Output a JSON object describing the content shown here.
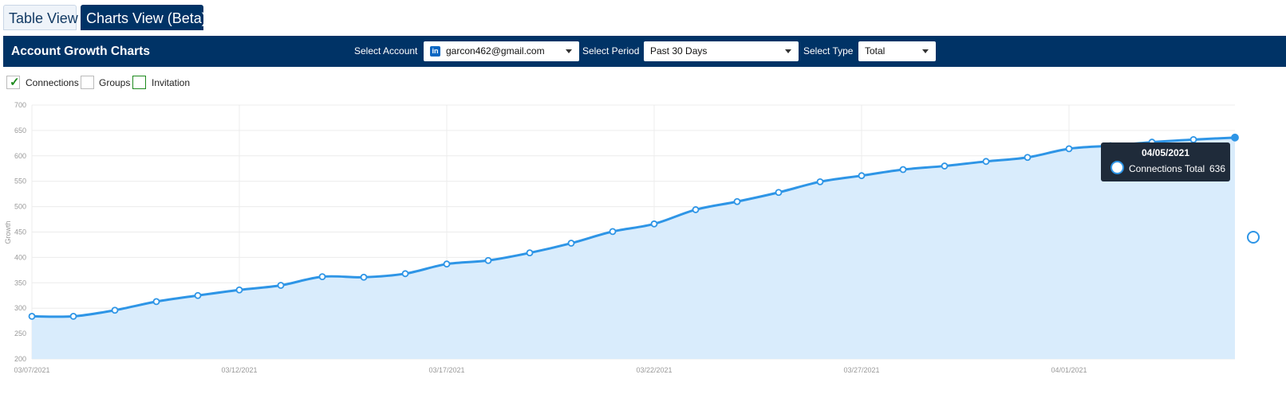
{
  "tabs": {
    "table_view": "Table View",
    "charts_view": "Charts View (Beta)"
  },
  "header": {
    "title": "Account Growth Charts",
    "select_account_label": "Select Account",
    "account_value": "garcon462@gmail.com",
    "account_icon": "linkedin-icon",
    "select_period_label": "Select Period",
    "period_value": "Past 30 Days",
    "select_type_label": "Select Type",
    "type_value": "Total"
  },
  "series_toggles": [
    {
      "label": "Connections",
      "checked": true
    },
    {
      "label": "Groups",
      "checked": false
    },
    {
      "label": "Invitation",
      "checked": false
    }
  ],
  "tooltip": {
    "date": "04/05/2021",
    "series": "Connections Total",
    "value": "636"
  },
  "colors": {
    "brand": "#003366",
    "line": "#2e95e6",
    "area": "#d9ecfc",
    "check": "#1e8a1e"
  },
  "chart_data": {
    "type": "area",
    "ylabel": "Growth",
    "ylim": [
      200,
      700
    ],
    "yticks": [
      200,
      250,
      300,
      350,
      400,
      450,
      500,
      550,
      600,
      650,
      700
    ],
    "xtick_labels": [
      "03/07/2021",
      "03/12/2021",
      "03/17/2021",
      "03/22/2021",
      "03/27/2021",
      "04/01/2021"
    ],
    "grid": true,
    "x": [
      "03/07/2021",
      "03/08/2021",
      "03/09/2021",
      "03/10/2021",
      "03/11/2021",
      "03/12/2021",
      "03/13/2021",
      "03/14/2021",
      "03/15/2021",
      "03/16/2021",
      "03/17/2021",
      "03/18/2021",
      "03/19/2021",
      "03/20/2021",
      "03/21/2021",
      "03/22/2021",
      "03/23/2021",
      "03/24/2021",
      "03/25/2021",
      "03/26/2021",
      "03/27/2021",
      "03/28/2021",
      "03/29/2021",
      "03/30/2021",
      "03/31/2021",
      "04/01/2021",
      "04/02/2021",
      "04/03/2021",
      "04/04/2021",
      "04/05/2021"
    ],
    "series": [
      {
        "name": "Connections Total",
        "values": [
          284,
          284,
          296,
          313,
          325,
          336,
          345,
          362,
          361,
          368,
          387,
          394,
          409,
          428,
          451,
          466,
          494,
          510,
          528,
          549,
          561,
          573,
          580,
          589,
          597,
          614,
          620,
          627,
          632,
          636
        ]
      }
    ]
  }
}
